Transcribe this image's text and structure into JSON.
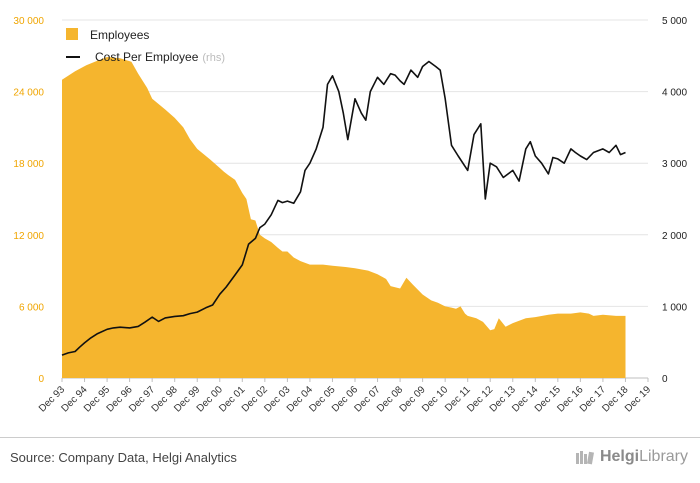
{
  "chart_data": {
    "type": "area+line",
    "title": "",
    "x_categories": [
      "Dec 93",
      "Dec 94",
      "Dec 95",
      "Dec 96",
      "Dec 97",
      "Dec 98",
      "Dec 99",
      "Dec 00",
      "Dec 01",
      "Dec 02",
      "Dec 03",
      "Dec 04",
      "Dec 05",
      "Dec 06",
      "Dec 07",
      "Dec 08",
      "Dec 09",
      "Dec 10",
      "Dec 11",
      "Dec 12",
      "Dec 13",
      "Dec 14",
      "Dec 15",
      "Dec 16",
      "Dec 17",
      "Dec 18",
      "Dec 19"
    ],
    "left_axis": {
      "ylim": [
        0,
        30000
      ],
      "ticks": [
        "0",
        "6 000",
        "12 000",
        "18 000",
        "24 000",
        "30 000"
      ],
      "color": "#f0a500"
    },
    "right_axis": {
      "ylim": [
        0,
        5000
      ],
      "ticks": [
        "0",
        "1 000",
        "2 000",
        "3 000",
        "4 000",
        "5 000"
      ],
      "color": "#222222"
    },
    "legend": {
      "position": "top-left"
    },
    "series": [
      {
        "name": "Employees",
        "type": "area",
        "axis": "left",
        "color": "#f5b52e",
        "points": [
          [
            1993.92,
            25000
          ],
          [
            1994.5,
            25700
          ],
          [
            1995.0,
            26200
          ],
          [
            1995.5,
            26600
          ],
          [
            1995.92,
            26900
          ],
          [
            1996.5,
            26800
          ],
          [
            1997.0,
            26500
          ],
          [
            1997.3,
            25500
          ],
          [
            1997.7,
            24300
          ],
          [
            1997.92,
            23400
          ],
          [
            1998.5,
            22500
          ],
          [
            1998.92,
            21800
          ],
          [
            1999.3,
            21000
          ],
          [
            1999.6,
            20000
          ],
          [
            1999.92,
            19200
          ],
          [
            2000.5,
            18300
          ],
          [
            2000.92,
            17600
          ],
          [
            2001.1,
            17300
          ],
          [
            2001.3,
            17000
          ],
          [
            2001.6,
            16600
          ],
          [
            2001.92,
            15500
          ],
          [
            2002.1,
            15000
          ],
          [
            2002.3,
            13300
          ],
          [
            2002.5,
            13200
          ],
          [
            2002.7,
            12000
          ],
          [
            2002.92,
            11700
          ],
          [
            2003.2,
            11400
          ],
          [
            2003.5,
            10900
          ],
          [
            2003.7,
            10600
          ],
          [
            2003.92,
            10600
          ],
          [
            2004.2,
            10100
          ],
          [
            2004.5,
            9800
          ],
          [
            2004.92,
            9500
          ],
          [
            2005.5,
            9500
          ],
          [
            2005.92,
            9400
          ],
          [
            2006.5,
            9300
          ],
          [
            2006.92,
            9200
          ],
          [
            2007.5,
            9000
          ],
          [
            2007.92,
            8700
          ],
          [
            2008.3,
            8300
          ],
          [
            2008.5,
            7700
          ],
          [
            2008.92,
            7500
          ],
          [
            2009.2,
            8400
          ],
          [
            2009.5,
            7800
          ],
          [
            2009.92,
            7000
          ],
          [
            2010.3,
            6500
          ],
          [
            2010.6,
            6300
          ],
          [
            2010.92,
            6000
          ],
          [
            2011.2,
            5900
          ],
          [
            2011.4,
            5800
          ],
          [
            2011.6,
            6000
          ],
          [
            2011.8,
            5400
          ],
          [
            2011.92,
            5200
          ],
          [
            2012.3,
            5000
          ],
          [
            2012.6,
            4700
          ],
          [
            2012.92,
            4000
          ],
          [
            2013.1,
            4100
          ],
          [
            2013.3,
            5000
          ],
          [
            2013.6,
            4300
          ],
          [
            2013.92,
            4600
          ],
          [
            2014.5,
            5000
          ],
          [
            2014.92,
            5100
          ],
          [
            2015.5,
            5300
          ],
          [
            2015.92,
            5400
          ],
          [
            2016.5,
            5400
          ],
          [
            2016.92,
            5500
          ],
          [
            2017.3,
            5400
          ],
          [
            2017.5,
            5200
          ],
          [
            2017.92,
            5300
          ],
          [
            2018.5,
            5200
          ],
          [
            2018.92,
            5200
          ]
        ]
      },
      {
        "name": "Cost Per Employee",
        "name_suffix": "(rhs)",
        "type": "line",
        "axis": "right",
        "color": "#111111",
        "points": [
          [
            1993.92,
            320
          ],
          [
            1994.2,
            350
          ],
          [
            1994.5,
            370
          ],
          [
            1994.7,
            430
          ],
          [
            1994.92,
            490
          ],
          [
            1995.2,
            560
          ],
          [
            1995.5,
            620
          ],
          [
            1995.92,
            680
          ],
          [
            1996.2,
            700
          ],
          [
            1996.5,
            710
          ],
          [
            1996.92,
            700
          ],
          [
            1997.3,
            720
          ],
          [
            1997.6,
            780
          ],
          [
            1997.92,
            850
          ],
          [
            1998.2,
            790
          ],
          [
            1998.5,
            840
          ],
          [
            1998.92,
            860
          ],
          [
            1999.3,
            870
          ],
          [
            1999.6,
            900
          ],
          [
            1999.92,
            920
          ],
          [
            2000.3,
            980
          ],
          [
            2000.6,
            1020
          ],
          [
            2000.92,
            1170
          ],
          [
            2001.2,
            1270
          ],
          [
            2001.6,
            1440
          ],
          [
            2001.92,
            1580
          ],
          [
            2002.2,
            1870
          ],
          [
            2002.5,
            1950
          ],
          [
            2002.7,
            2100
          ],
          [
            2002.92,
            2150
          ],
          [
            2003.2,
            2280
          ],
          [
            2003.5,
            2480
          ],
          [
            2003.7,
            2450
          ],
          [
            2003.92,
            2470
          ],
          [
            2004.2,
            2440
          ],
          [
            2004.5,
            2600
          ],
          [
            2004.7,
            2900
          ],
          [
            2004.92,
            3000
          ],
          [
            2005.2,
            3200
          ],
          [
            2005.5,
            3500
          ],
          [
            2005.7,
            4100
          ],
          [
            2005.92,
            4220
          ],
          [
            2006.2,
            4000
          ],
          [
            2006.4,
            3700
          ],
          [
            2006.6,
            3330
          ],
          [
            2006.92,
            3900
          ],
          [
            2007.2,
            3700
          ],
          [
            2007.4,
            3600
          ],
          [
            2007.6,
            4000
          ],
          [
            2007.92,
            4200
          ],
          [
            2008.2,
            4100
          ],
          [
            2008.5,
            4250
          ],
          [
            2008.7,
            4230
          ],
          [
            2008.92,
            4150
          ],
          [
            2009.1,
            4100
          ],
          [
            2009.4,
            4300
          ],
          [
            2009.7,
            4200
          ],
          [
            2009.92,
            4350
          ],
          [
            2010.2,
            4420
          ],
          [
            2010.5,
            4350
          ],
          [
            2010.7,
            4300
          ],
          [
            2010.92,
            3900
          ],
          [
            2011.2,
            3250
          ],
          [
            2011.5,
            3100
          ],
          [
            2011.92,
            2900
          ],
          [
            2012.2,
            3400
          ],
          [
            2012.5,
            3550
          ],
          [
            2012.7,
            2500
          ],
          [
            2012.92,
            3000
          ],
          [
            2013.2,
            2950
          ],
          [
            2013.5,
            2800
          ],
          [
            2013.92,
            2900
          ],
          [
            2014.2,
            2750
          ],
          [
            2014.5,
            3200
          ],
          [
            2014.7,
            3300
          ],
          [
            2014.92,
            3100
          ],
          [
            2015.2,
            3000
          ],
          [
            2015.5,
            2850
          ],
          [
            2015.7,
            3080
          ],
          [
            2015.92,
            3060
          ],
          [
            2016.2,
            3000
          ],
          [
            2016.5,
            3200
          ],
          [
            2016.7,
            3150
          ],
          [
            2016.92,
            3100
          ],
          [
            2017.2,
            3050
          ],
          [
            2017.5,
            3150
          ],
          [
            2017.92,
            3200
          ],
          [
            2018.2,
            3150
          ],
          [
            2018.5,
            3250
          ],
          [
            2018.7,
            3120
          ],
          [
            2018.92,
            3150
          ]
        ]
      }
    ]
  },
  "footer": {
    "source": "Source: Company Data, Helgi Analytics",
    "brand_prefix": "Helgi",
    "brand_suffix": "Library"
  }
}
